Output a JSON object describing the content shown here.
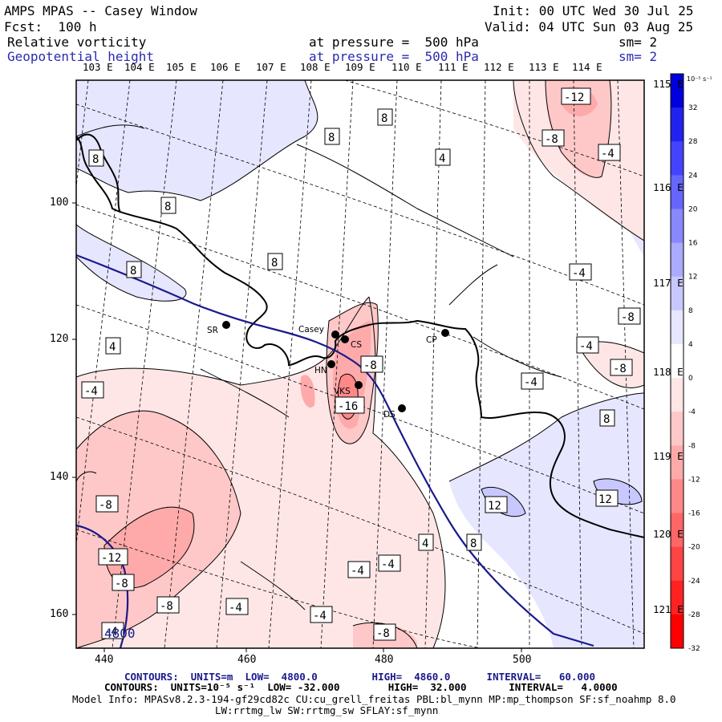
{
  "header": {
    "title": "AMPS MPAS -- Casey Window",
    "forecast": "Fcst:  100 h",
    "init": "Init: 00 UTC Wed 30 Jul 25",
    "valid": "Valid: 04 UTC Sun 03 Aug 25",
    "field1": {
      "name": "Relative vorticity",
      "level": "at pressure =  500 hPa",
      "smooth": "sm= 2"
    },
    "field2": {
      "name": "Geopotential height",
      "level": "at pressure =  500 hPa",
      "smooth": "sm= 2"
    }
  },
  "lon_labels": [
    "103 E",
    "104 E",
    "105 E",
    "106 E",
    "107 E",
    "108 E",
    "109 E",
    "110 E",
    "111 E",
    "112 E",
    "113 E",
    "114 E",
    "115 E",
    "116 E",
    "117 E",
    "118 E",
    "119 E",
    "120 E",
    "121 E"
  ],
  "x_axis": [
    "440",
    "460",
    "480",
    "500"
  ],
  "y_axis": [
    "100",
    "120",
    "140",
    "160"
  ],
  "stations": [
    "SR",
    "Casey",
    "CS",
    "HN",
    "VKS",
    "CP",
    "DS"
  ],
  "contour_labels": [
    "8",
    "8",
    "4",
    "-12",
    "-8",
    "-4",
    "8",
    "8",
    "8",
    "8",
    "-4",
    "-8",
    "4",
    "-4",
    "-8",
    "-8",
    "-16",
    "-4",
    "-4",
    "8",
    "-8",
    "-4",
    "12",
    "12",
    "-12",
    "-8",
    "-8",
    "-4",
    "-4",
    "-4",
    "4",
    "8",
    "-4",
    "-8",
    "4800"
  ],
  "colorbar": {
    "unit": "10⁻⁵ s⁻¹",
    "ticks": [
      "32",
      "28",
      "24",
      "20",
      "16",
      "12",
      "8",
      "4",
      "0",
      "-4",
      "-8",
      "-12",
      "-16",
      "-20",
      "-24",
      "-28",
      "-32"
    ],
    "colors": [
      "#0000dd",
      "#2222ee",
      "#4444ff",
      "#6666ff",
      "#8888ff",
      "#aaaaff",
      "#c8c8ff",
      "#e6e6ff",
      "#ffffff",
      "#ffe6e6",
      "#ffc8c8",
      "#ffaaaa",
      "#ff8888",
      "#ff6666",
      "#ff4444",
      "#ff2222",
      "#ff0000"
    ]
  },
  "footer": {
    "line1": "CONTOURS:  UNITS=m  LOW=  4800.0         HIGH=  4860.0      INTERVAL=   60.000",
    "line2": "CONTOURS:  UNITS=10⁻⁵ s⁻¹  LOW= -32.000        HIGH=  32.000       INTERVAL=   4.0000",
    "line3": "Model Info: MPASv8.2.3-194-gf29cd82c CU:cu_grell_freitas PBL:bl_mynn MP:mp_thompson SF:sf_noahmp 8.0",
    "line4": "LW:rrtmg_lw SW:rrtmg_sw SFLAY:sf_mynn"
  }
}
